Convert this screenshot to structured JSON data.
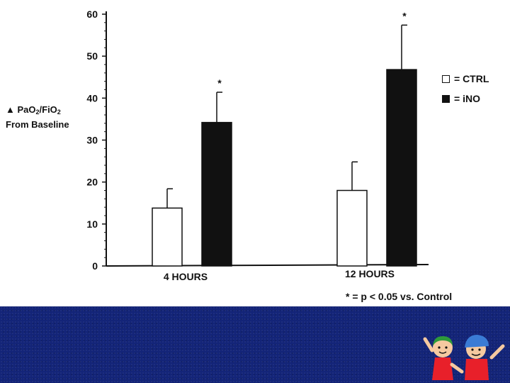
{
  "chart_data": {
    "type": "bar",
    "categories": [
      "4 HOURS",
      "12 HOURS"
    ],
    "series": [
      {
        "name": "CTRL",
        "values": [
          13.8,
          18.0
        ],
        "errors": [
          4.6,
          6.8
        ],
        "color": "#ffffff",
        "significant": [
          false,
          false
        ]
      },
      {
        "name": "iNO",
        "values": [
          34.2,
          46.8
        ],
        "errors": [
          7.2,
          10.6
        ],
        "color": "#111111",
        "significant": [
          true,
          true
        ]
      }
    ],
    "ylabel": {
      "prefix": "▲ PaO",
      "sub1": "2",
      "middle": "/FiO",
      "sub2": "2",
      "line2": "From Baseline"
    },
    "ylim": [
      0,
      60
    ],
    "yticks": [
      0,
      10,
      20,
      30,
      40,
      50,
      60
    ],
    "significance_marker": "*",
    "legend": {
      "placement": "right",
      "items": [
        {
          "label": "= CTRL",
          "swatch": "white"
        },
        {
          "label": "= iNO",
          "swatch": "black"
        }
      ]
    },
    "footnote": "* = p < 0.05 vs. Control"
  },
  "slide": {
    "band_color": "#132478",
    "logo_icon": "children-logo-icon"
  }
}
